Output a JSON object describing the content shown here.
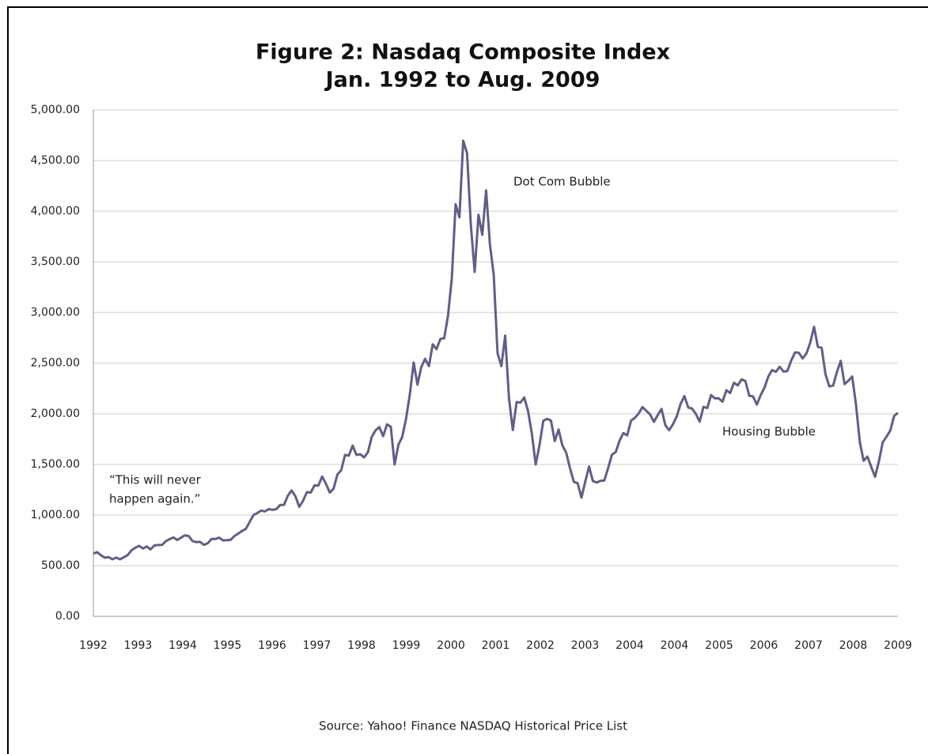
{
  "chart_data": {
    "type": "line",
    "title": "Figure 2: Nasdaq Composite Index",
    "subtitle": "Jan. 1992 to Aug. 2009",
    "source": "Source: Yahoo! Finance NASDAQ Historical Price List",
    "annotations": [
      "“This will never",
      "happen again.”",
      "Dot Com Bubble",
      "Housing Bubble"
    ],
    "color": "#5f5f87",
    "grid": true,
    "ylim": [
      0,
      5000
    ],
    "yticks": [
      {
        "value": 0,
        "label": "0.00"
      },
      {
        "value": 500,
        "label": "500.00"
      },
      {
        "value": 1000,
        "label": "1,000.00"
      },
      {
        "value": 1500,
        "label": "1,500.00"
      },
      {
        "value": 2000,
        "label": "2,000.00"
      },
      {
        "value": 2500,
        "label": "2,500.00"
      },
      {
        "value": 3000,
        "label": "3,000.00"
      },
      {
        "value": 3500,
        "label": "3,500.00"
      },
      {
        "value": 4000,
        "label": "4,000.00"
      },
      {
        "value": 4500,
        "label": "4,500.00"
      },
      {
        "value": 5000,
        "label": "5,000.00"
      }
    ],
    "x_labels": [
      "1992",
      "1993",
      "1994",
      "1995",
      "1996",
      "1997",
      "1998",
      "1999",
      "2000",
      "2001",
      "2002",
      "2003",
      "2004",
      "2004",
      "2005",
      "2006",
      "2007",
      "2008",
      "2009"
    ],
    "values": [
      620,
      633,
      603,
      579,
      585,
      563,
      580,
      563,
      583,
      605,
      652,
      677,
      696,
      670,
      690,
      661,
      700,
      704,
      705,
      742,
      763,
      779,
      754,
      777,
      800,
      793,
      743,
      733,
      735,
      706,
      722,
      765,
      764,
      777,
      750,
      752,
      755,
      793,
      817,
      843,
      864,
      933,
      1001,
      1020,
      1044,
      1036,
      1059,
      1052,
      1059,
      1100,
      1101,
      1191,
      1243,
      1185,
      1081,
      1141,
      1227,
      1222,
      1293,
      1291,
      1380,
      1309,
      1222,
      1261,
      1400,
      1442,
      1594,
      1587,
      1686,
      1594,
      1601,
      1570,
      1619,
      1771,
      1836,
      1869,
      1779,
      1895,
      1873,
      1499,
      1694,
      1772,
      1950,
      2193,
      2506,
      2288,
      2461,
      2543,
      2471,
      2686,
      2638,
      2739,
      2746,
      2966,
      3336,
      4069,
      3940,
      4697,
      4573,
      3861,
      3401,
      3966,
      3767,
      4206,
      3673,
      3370,
      2598,
      2471,
      2773,
      2152,
      1840,
      2116,
      2110,
      2161,
      2027,
      1805,
      1499,
      1690,
      1931,
      1950,
      1934,
      1731,
      1845,
      1688,
      1616,
      1463,
      1328,
      1315,
      1172,
      1330,
      1479,
      1336,
      1321,
      1338,
      1341,
      1464,
      1596,
      1623,
      1735,
      1810,
      1787,
      1932,
      1960,
      2003,
      2066,
      2030,
      1994,
      1920,
      1987,
      2048,
      1887,
      1838,
      1897,
      1975,
      2097,
      2175,
      2062,
      2052,
      1999,
      1922,
      2068,
      2057,
      2185,
      2152,
      2152,
      2120,
      2233,
      2205,
      2306,
      2281,
      2340,
      2323,
      2179,
      2172,
      2091,
      2184,
      2258,
      2367,
      2432,
      2415,
      2464,
      2416,
      2422,
      2525,
      2605,
      2603,
      2546,
      2596,
      2702,
      2859,
      2661,
      2652,
      2390,
      2271,
      2279,
      2413,
      2523,
      2293,
      2326,
      2368,
      2092,
      1721,
      1536,
      1577,
      1476,
      1378,
      1529,
      1717,
      1774,
      1835,
      1979,
      2009
    ]
  }
}
